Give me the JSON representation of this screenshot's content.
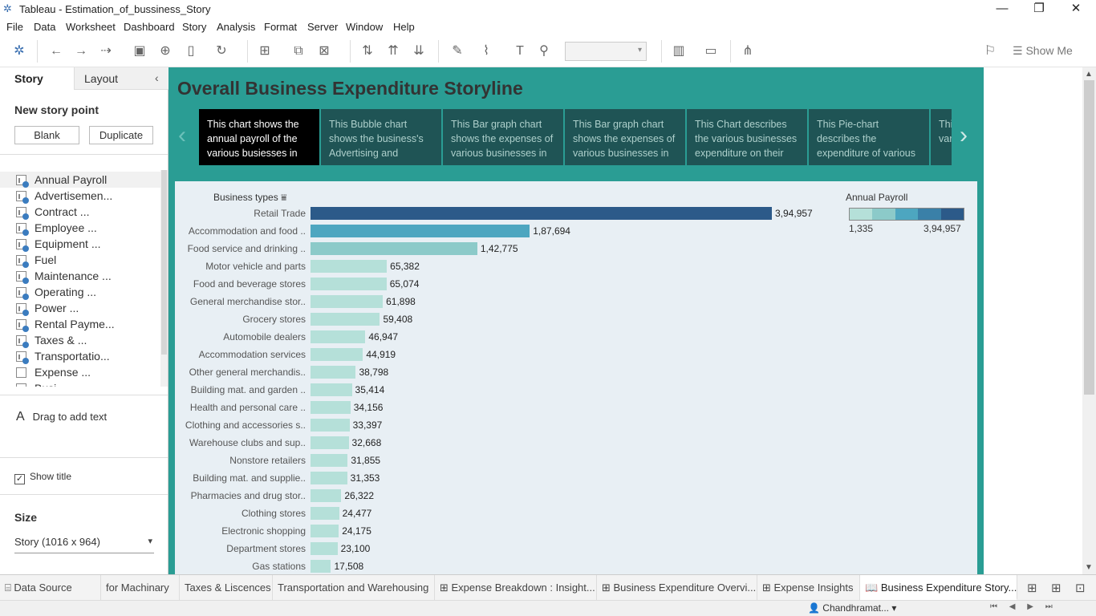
{
  "window": {
    "title": "Tableau - Estimation_of_bussiness_Story",
    "minimize": "—",
    "restore": "❐",
    "close": "✕"
  },
  "menu": [
    "File",
    "Data",
    "Worksheet",
    "Dashboard",
    "Story",
    "Analysis",
    "Format",
    "Server",
    "Window",
    "Help"
  ],
  "toolbar": {
    "show_me": "Show Me"
  },
  "sidebar": {
    "tab_story": "Story",
    "tab_layout": "Layout",
    "collapse": "‹",
    "new_story_point": "New story point",
    "blank": "Blank",
    "duplicate": "Duplicate",
    "sheets": [
      "Annual Payroll",
      "Advertisemen...",
      "Contract ...",
      "Employee ...",
      "Equipment ...",
      "Fuel",
      "Maintenance ...",
      "Operating ...",
      "Power ...",
      "Rental Payme...",
      "Taxes & ...",
      "Transportatio...",
      "Expense ...",
      "Busi..."
    ],
    "drag_text": "Drag to add text",
    "drag_icon": "A",
    "show_title": "Show title",
    "show_title_checked": "✓",
    "size_label": "Size",
    "size_value": "Story (1016 x 964)"
  },
  "story": {
    "title": "Overall Business Expenditure Storyline",
    "points": [
      "This chart shows the annual payroll of the various busiesses in",
      "This Bubble chart shows the business's Advertising and",
      "This Bar graph chart shows the expenses of various businesses in",
      "This Bar graph chart shows the expenses of various businesses in",
      "This Chart describes the various businesses expenditure on their",
      "This Pie-chart describes the expenditure of various",
      "This chart shows various expenses"
    ],
    "prev": "‹",
    "next": "›"
  },
  "chart_data": {
    "type": "bar",
    "orientation": "horizontal",
    "header": "Business types",
    "sort_icon": "sort-icon",
    "categories": [
      "Retail Trade",
      "Accommodation and food ..",
      "Food service and drinking ..",
      "Motor vehicle and parts",
      "Food and beverage stores",
      "General merchandise stor..",
      "Grocery stores",
      "Automobile dealers",
      "Accommodation services",
      "Other general merchandis..",
      "Building mat. and garden ..",
      "Health and personal care ..",
      "Clothing and accessories s..",
      "Warehouse clubs and sup..",
      "Nonstore retailers",
      "Building mat. and supplie..",
      "Pharmacies and drug stor..",
      "Clothing stores",
      "Electronic shopping",
      "Department stores",
      "Gas stations"
    ],
    "values": [
      394957,
      187694,
      142775,
      65382,
      65074,
      61898,
      59408,
      46947,
      44919,
      38798,
      35414,
      34156,
      33397,
      32668,
      31855,
      31353,
      26322,
      24477,
      24175,
      23100,
      17508
    ],
    "labels": [
      "3,94,957",
      "1,87,694",
      "1,42,775",
      "65,382",
      "65,074",
      "61,898",
      "59,408",
      "46,947",
      "44,919",
      "38,798",
      "35,414",
      "34,156",
      "33,397",
      "32,668",
      "31,855",
      "31,353",
      "26,322",
      "24,477",
      "24,175",
      "23,100",
      "17,508"
    ],
    "xlim": [
      0,
      394957
    ],
    "legend": {
      "title": "Annual Payroll",
      "min": "1,335",
      "max": "3,94,957",
      "colors": [
        "#b5e0d9",
        "#8ccac9",
        "#4da6c0",
        "#3a80a8",
        "#2c5a89"
      ]
    }
  },
  "bottom_tabs": [
    "Data Source",
    "for Machinary",
    "Taxes & Liscences",
    "Transportation and Warehousing",
    "Expense Breakdown : Insight...",
    "Business Expenditure Overvi...",
    "Expense Insights",
    "Business Expenditure Story..."
  ],
  "status": {
    "user": "Chandhramat...",
    "nav": "⏮ ◀ ▶ ⏭"
  }
}
